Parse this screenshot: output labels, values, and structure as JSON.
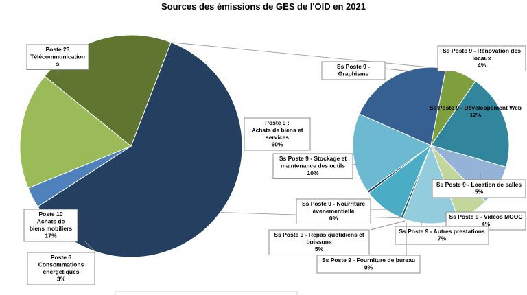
{
  "chart_data": {
    "type": "pie",
    "subtype": "pie-of-pie",
    "title": "Sources des émissions de GES de l'OID en 2021",
    "main_pie": {
      "slices": [
        {
          "label": "Poste 9 :\nAchats de biens et\nservices",
          "value_label": "60%",
          "value": 60,
          "color": "#243f60"
        },
        {
          "label": "Poste 6\nConsommations\nénergétiques",
          "value_label": "3%",
          "value": 3,
          "color": "#4f81bd"
        },
        {
          "label": "Poste 10\nAchats de\nbiens mobiliers",
          "value_label": "17%",
          "value": 17,
          "color": "#9bbb59"
        },
        {
          "label": "Poste 23\nTélécommunication\ns",
          "value_label": "",
          "value": 20,
          "color": "#5f7530"
        }
      ]
    },
    "sub_pie": {
      "parent": "Poste 9 :\nAchats de biens et\nservices",
      "slices": [
        {
          "label": "Ss Poste 9 - Rénovation des\nlocaux",
          "value_label": "4%",
          "value": 4,
          "color": "#7f9f3f"
        },
        {
          "label": "Ss Poste 9 - Développement Web",
          "value_label": "12%",
          "value": 12,
          "color": "#31859c"
        },
        {
          "label": "Ss Poste 9 - Location de salles",
          "value_label": "5%",
          "value": 5,
          "color": "#95b3d7"
        },
        {
          "label": "Ss Poste 9 - Vidéos MOOC",
          "value_label": "4%",
          "value": 4,
          "color": "#c3d69b"
        },
        {
          "label": "Ss Poste 9 - Autres prestations",
          "value_label": "7%",
          "value": 7,
          "color": "#93cddd"
        },
        {
          "label": "Ss Poste 9 - Fourniture de bureau",
          "value_label": "0%",
          "value": 0.3,
          "color": "#1f5e6e"
        },
        {
          "label": "Ss Poste 9 - Repas quotidiens et\nboissons",
          "value_label": "5%",
          "value": 5,
          "color": "#4bacc6"
        },
        {
          "label": "Ss Poste 9 - Nourriture\névenementielle",
          "value_label": "0%",
          "value": 0.3,
          "color": "#17375e"
        },
        {
          "label": "Ss Poste 9 - Stockage et\nmaintenance des outils",
          "value_label": "10%",
          "value": 10,
          "color": "#6db9d2"
        },
        {
          "label": "Ss Poste 9 -\nGraphisme",
          "value_label": "",
          "value": 13,
          "color": "#366092"
        }
      ]
    },
    "legend": "bottom"
  }
}
